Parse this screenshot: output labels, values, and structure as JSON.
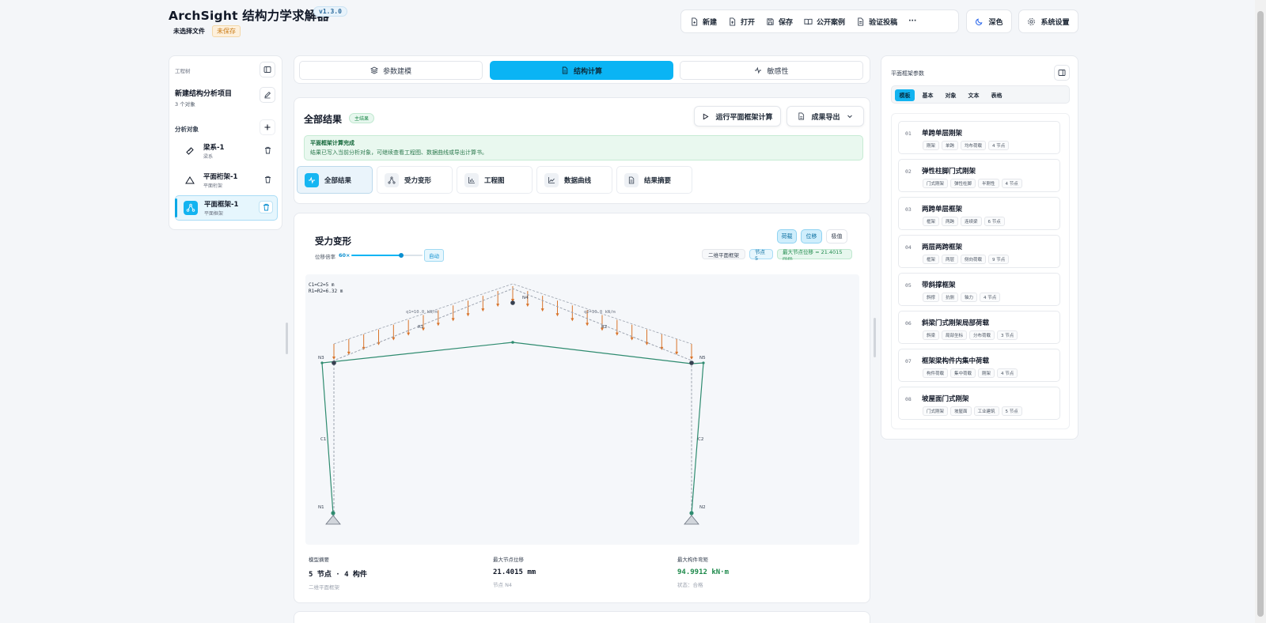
{
  "header": {
    "app_title": "ArchSight 结构力学求解器",
    "version": "v1.3.0",
    "file_label": "未选择文件",
    "unsaved_badge": "未保存"
  },
  "toolbar": {
    "new": "新建",
    "open": "打开",
    "save": "保存",
    "cases": "公开案例",
    "verify": "验证投稿",
    "more": "···",
    "dark": "深色",
    "settings": "系统设置"
  },
  "left_panel": {
    "heading": "工程树",
    "project_title": "新建结构分析项目",
    "project_sub": "3 个对象",
    "objects_heading": "分析对象",
    "objects": [
      {
        "name": "梁系-1",
        "type": "梁系",
        "icon": "ruler-icon"
      },
      {
        "name": "平面桁架-1",
        "type": "平面桁架",
        "icon": "triangle-icon"
      },
      {
        "name": "平面框架-1",
        "type": "平面框架",
        "icon": "network-icon"
      }
    ]
  },
  "main_tabs": [
    {
      "label": "参数建模",
      "icon": "layers-icon"
    },
    {
      "label": "结构计算",
      "icon": "document-icon"
    },
    {
      "label": "敏感性",
      "icon": "activity-icon"
    }
  ],
  "results": {
    "title": "全部结果",
    "badge": "主结果",
    "run_button": "运行平面框架计算",
    "export_button": "成果导出",
    "alert_title": "平面框架计算完成",
    "alert_text": "结果已写入当前分析对象，可继续查看工程图、数据曲线或导出计算书。",
    "sub_tabs": [
      "全部结果",
      "受力变形",
      "工程图",
      "数据曲线",
      "结果摘要"
    ]
  },
  "diagram": {
    "title": "受力变形",
    "scale_label": "位移倍率",
    "scale_value": "60×",
    "scale_fraction": 0.7,
    "auto_label": "自动",
    "toggles": [
      "荷载",
      "位移",
      "极值"
    ],
    "tags": [
      "二维平面框架",
      "节点 5",
      "最大节点位移 = 21.4015 mm"
    ],
    "info_lines": [
      "C1=C2=5 m",
      "R1=R2=6.32 m"
    ],
    "load_labels": [
      "q1=10.0 kN/m",
      "q2=10.0 kN/m"
    ],
    "node_labels": [
      "N1",
      "N2",
      "N3",
      "N4",
      "N5"
    ],
    "member_labels": [
      "C1",
      "C2",
      "R1",
      "R2"
    ]
  },
  "stats": [
    {
      "label": "模型摘要",
      "value": "5 节点 · 4 构件",
      "sub": "二维平面框架"
    },
    {
      "label": "最大节点位移",
      "value": "21.4015 mm",
      "sub": "节点 N4"
    },
    {
      "label": "最大构件弯矩",
      "value": "94.9912 kN·m",
      "sub": "状态：合格"
    }
  ],
  "right_panel": {
    "heading": "平面框架参数",
    "segments": [
      "模板",
      "基本",
      "对象",
      "文本",
      "表格"
    ],
    "templates": [
      {
        "num": "01",
        "title": "单跨单层刚架",
        "tags": [
          "刚架",
          "单跨",
          "均布荷载",
          "4 节点"
        ]
      },
      {
        "num": "02",
        "title": "弹性柱脚门式刚架",
        "tags": [
          "门式刚架",
          "弹性柱脚",
          "半刚性",
          "4 节点"
        ]
      },
      {
        "num": "03",
        "title": "两跨单层框架",
        "tags": [
          "框架",
          "两跨",
          "连续梁",
          "6 节点"
        ]
      },
      {
        "num": "04",
        "title": "两层两跨框架",
        "tags": [
          "框架",
          "两层",
          "侧向荷载",
          "9 节点"
        ]
      },
      {
        "num": "05",
        "title": "带斜撑框架",
        "tags": [
          "斜撑",
          "抗侧",
          "轴力",
          "4 节点"
        ]
      },
      {
        "num": "06",
        "title": "斜梁门式刚架局部荷载",
        "tags": [
          "斜梁",
          "局部坐标",
          "分布荷载",
          "3 节点"
        ]
      },
      {
        "num": "07",
        "title": "框架梁构件内集中荷载",
        "tags": [
          "构件荷载",
          "集中荷载",
          "刚架",
          "4 节点"
        ]
      },
      {
        "num": "08",
        "title": "坡屋面门式刚架",
        "tags": [
          "门式刚架",
          "坡屋面",
          "工业建筑",
          "5 节点"
        ]
      }
    ]
  },
  "colors": {
    "accent": "#0ab4f4",
    "frame": "#2e8b6f",
    "load": "#d9742b",
    "success": "#1f8a4c"
  }
}
